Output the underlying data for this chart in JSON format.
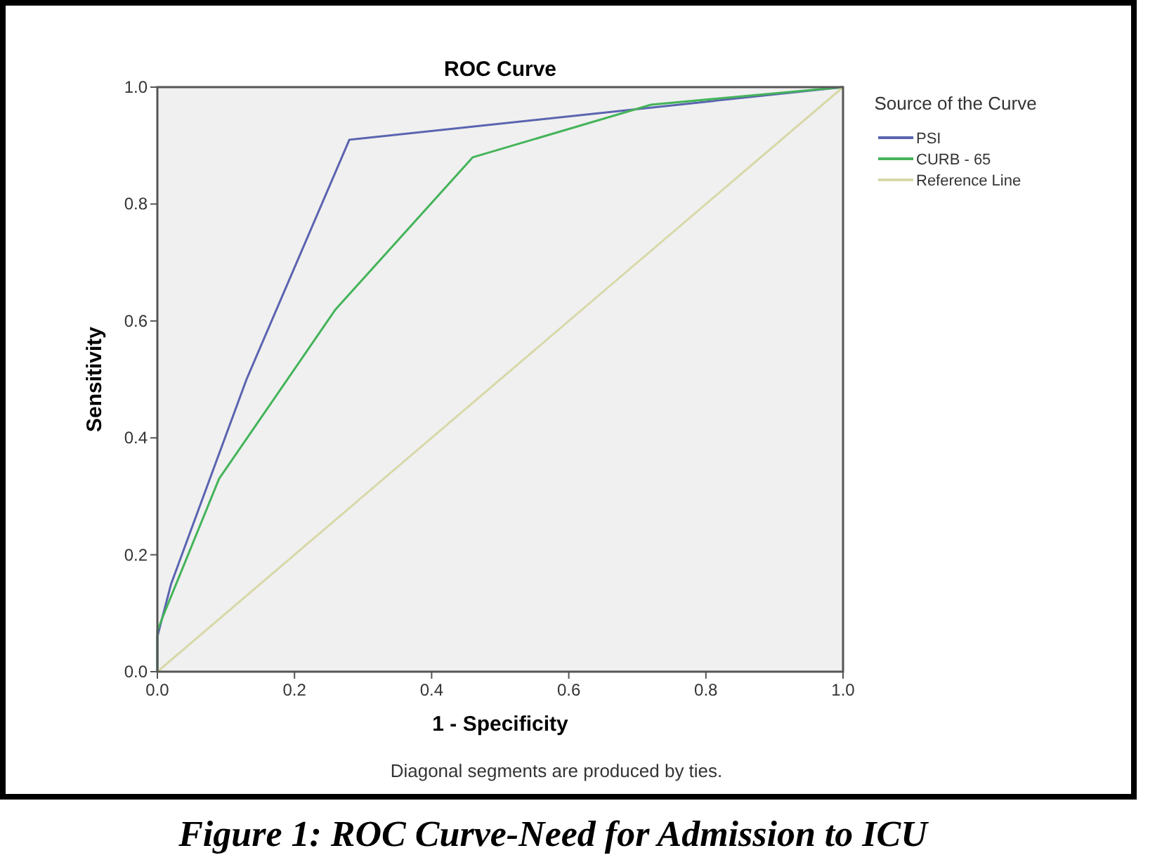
{
  "chart_data": {
    "type": "line",
    "title": "ROC Curve",
    "xlabel": "1 - Specificity",
    "ylabel": "Sensitivity",
    "legend_title": "Source of the Curve",
    "legend": "top right",
    "annotations": [
      "Diagonal segments are produced by ties.",
      "Figure 1: ROC Curve-Need for Admission to ICU"
    ],
    "xlim": [
      0,
      1
    ],
    "ylim": [
      0,
      1
    ],
    "xticks": [
      {
        "value": 0,
        "label": "0.0"
      },
      {
        "value": 0.2,
        "label": "0.2"
      },
      {
        "value": 0.4,
        "label": "0.4"
      },
      {
        "value": 0.6,
        "label": "0.6"
      },
      {
        "value": 0.8,
        "label": "0.8"
      },
      {
        "value": 1,
        "label": "1.0"
      }
    ],
    "yticks": [
      {
        "value": 0,
        "label": "0.0"
      },
      {
        "value": 0.2,
        "label": "0.2"
      },
      {
        "value": 0.4,
        "label": "0.4"
      },
      {
        "value": 0.6,
        "label": "0.6"
      },
      {
        "value": 0.8,
        "label": "0.8"
      },
      {
        "value": 1,
        "label": "1.0"
      }
    ],
    "grid": false,
    "marker": "none",
    "line_style": "solid",
    "series": [
      {
        "name": "PSI",
        "color": "#5a64b0",
        "x": [
          0,
          0,
          0.02,
          0.13,
          0.28,
          1
        ],
        "values": [
          0,
          0.06,
          0.15,
          0.5,
          0.91,
          1
        ]
      },
      {
        "name": "CURB - 65",
        "color": "#44b45a",
        "x": [
          0,
          0,
          0.01,
          0.09,
          0.26,
          0.46,
          0.72,
          1
        ],
        "values": [
          0,
          0.07,
          0.1,
          0.33,
          0.62,
          0.88,
          0.97,
          1
        ]
      },
      {
        "name": "Reference Line",
        "color": "#d8d8a8",
        "x": [
          0,
          1
        ],
        "values": [
          0,
          1
        ]
      }
    ]
  }
}
